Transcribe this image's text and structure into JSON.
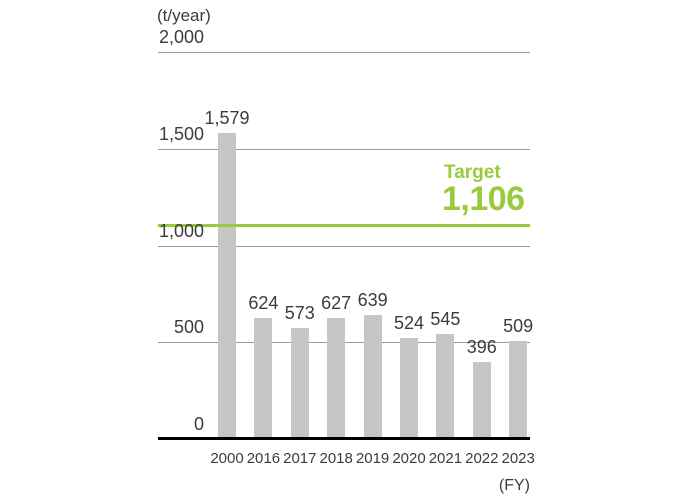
{
  "chart_data": {
    "type": "bar",
    "title": "",
    "unit_label": "(t/year)",
    "x_axis_label": "(FY)",
    "categories": [
      "2000",
      "2016",
      "2017",
      "2018",
      "2019",
      "2020",
      "2021",
      "2022",
      "2023"
    ],
    "values": [
      1579,
      624,
      573,
      627,
      639,
      524,
      545,
      396,
      509
    ],
    "value_labels": [
      "1,579",
      "624",
      "573",
      "627",
      "639",
      "524",
      "545",
      "396",
      "509"
    ],
    "y_ticks": [
      {
        "value": 2000,
        "label": "2,000"
      },
      {
        "value": 1500,
        "label": "1,500"
      },
      {
        "value": 1000,
        "label": "1,000"
      },
      {
        "value": 500,
        "label": "500"
      },
      {
        "value": 0,
        "label": "0"
      }
    ],
    "ylim": [
      0,
      2000
    ],
    "grid": true,
    "legend": "none",
    "target_line": {
      "label": "Target",
      "value": 1106,
      "value_label": "1,106"
    },
    "colors": {
      "bar": "#c5c6c6",
      "target": "#9aca3c",
      "grid": "#9b9b9b",
      "axis": "#000000",
      "text": "#3c3c3c"
    }
  }
}
